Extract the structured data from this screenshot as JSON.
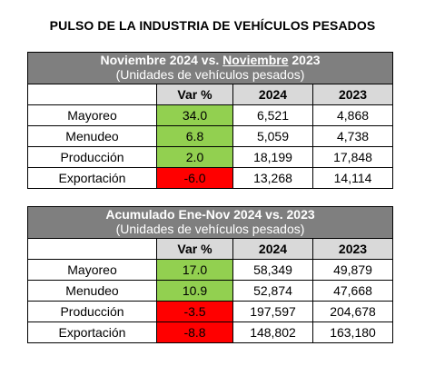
{
  "title": "PULSO DE LA INDUSTRIA DE VEHÍCULOS PESADOS",
  "columns": {
    "var": "Var %",
    "y2024": "2024",
    "y2023": "2023"
  },
  "tables": [
    {
      "heading_a": "Noviembre 2024 vs. ",
      "heading_b": "Noviembre",
      "heading_c": " 2023",
      "subheading": "(Unidades de vehículos pesados)",
      "rows": [
        {
          "label": "Mayoreo",
          "var": "34.0",
          "y2024": "6,521",
          "y2023": "4,868",
          "status": "pos"
        },
        {
          "label": "Menudeo",
          "var": "6.8",
          "y2024": "5,059",
          "y2023": "4,738",
          "status": "pos"
        },
        {
          "label": "Producción",
          "var": "2.0",
          "y2024": "18,199",
          "y2023": "17,848",
          "status": "pos"
        },
        {
          "label": "Exportación",
          "var": "-6.0",
          "y2024": "13,268",
          "y2023": "14,114",
          "status": "neg"
        }
      ]
    },
    {
      "heading_a": "Acumulado Ene-Nov 2024 vs. 2023",
      "heading_b": "",
      "heading_c": "",
      "subheading": "(Unidades de vehículos pesados)",
      "rows": [
        {
          "label": "Mayoreo",
          "var": "17.0",
          "y2024": "58,349",
          "y2023": "49,879",
          "status": "pos"
        },
        {
          "label": "Menudeo",
          "var": "10.9",
          "y2024": "52,874",
          "y2023": "47,668",
          "status": "pos"
        },
        {
          "label": "Producción",
          "var": "-3.5",
          "y2024": "197,597",
          "y2023": "204,678",
          "status": "neg"
        },
        {
          "label": "Exportación",
          "var": "-8.8",
          "y2024": "148,802",
          "y2023": "163,180",
          "status": "neg"
        }
      ]
    }
  ],
  "colors": {
    "header_bg": "#7f7f7f",
    "positive": "#92d050",
    "negative": "#ff0000",
    "col_gray": "#d9d9d9"
  }
}
